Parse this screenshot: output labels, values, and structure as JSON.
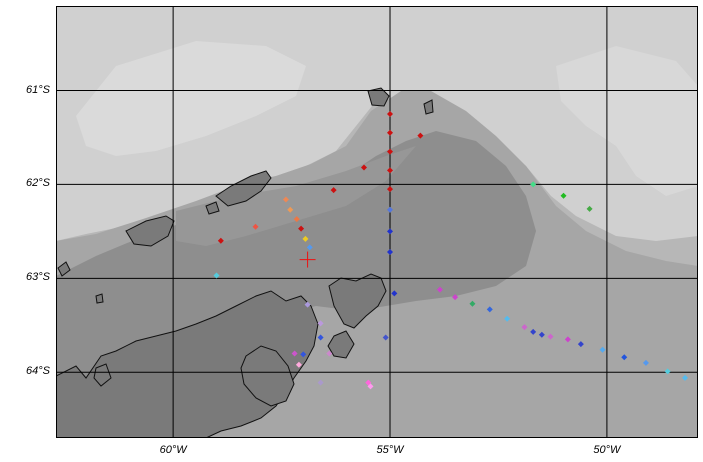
{
  "map": {
    "lat_labels": [
      {
        "text": "61°S",
        "lat": -61
      },
      {
        "text": "62°S",
        "lat": -62
      },
      {
        "text": "63°S",
        "lat": -63
      },
      {
        "text": "64°S",
        "lat": -64
      }
    ],
    "lon_labels": [
      {
        "text": "60°W",
        "lon": -60
      },
      {
        "text": "55°W",
        "lon": -55
      },
      {
        "text": "50°W",
        "lon": -50
      }
    ],
    "grid_lons": [
      -60,
      -55,
      -50
    ],
    "grid_lats": [
      -61,
      -62,
      -63,
      -64
    ],
    "extent": {
      "lon_min": -62.7,
      "lon_max": -47.9,
      "lat_min": -64.7,
      "lat_max": -60.1
    },
    "gridlines": true,
    "marker": {
      "type": "red-cross",
      "lon": -56.9,
      "lat": -62.8
    },
    "colors": {
      "land": "#7a7a7a",
      "deep": "#888888",
      "mid": "#a2a2a2",
      "shelf": "#bdbdbd",
      "shallow": "#d6d6d6",
      "grid": "#000000",
      "marker": "#ee1111"
    },
    "stations": [
      {
        "lon": -55.0,
        "lat": -61.25,
        "color": "#cc1111"
      },
      {
        "lon": -55.0,
        "lat": -61.45,
        "color": "#cc1111"
      },
      {
        "lon": -55.0,
        "lat": -61.65,
        "color": "#cc1111"
      },
      {
        "lon": -55.0,
        "lat": -61.85,
        "color": "#cc1111"
      },
      {
        "lon": -55.0,
        "lat": -62.05,
        "color": "#cc1111"
      },
      {
        "lon": -55.0,
        "lat": -62.27,
        "color": "#5577dd"
      },
      {
        "lon": -55.0,
        "lat": -62.5,
        "color": "#2233cc"
      },
      {
        "lon": -55.0,
        "lat": -62.72,
        "color": "#2233cc"
      },
      {
        "lon": -54.3,
        "lat": -61.48,
        "color": "#cc1111"
      },
      {
        "lon": -55.6,
        "lat": -61.82,
        "color": "#cc1111"
      },
      {
        "lon": -56.3,
        "lat": -62.06,
        "color": "#cc1111"
      },
      {
        "lon": -58.1,
        "lat": -62.45,
        "color": "#ee5544"
      },
      {
        "lon": -58.9,
        "lat": -62.6,
        "color": "#cc1111"
      },
      {
        "lon": -57.4,
        "lat": -62.16,
        "color": "#ee8855"
      },
      {
        "lon": -57.3,
        "lat": -62.27,
        "color": "#ee9955"
      },
      {
        "lon": -57.15,
        "lat": -62.37,
        "color": "#ee7744"
      },
      {
        "lon": -57.05,
        "lat": -62.47,
        "color": "#cc1111"
      },
      {
        "lon": -56.95,
        "lat": -62.58,
        "color": "#eecc22"
      },
      {
        "lon": -56.85,
        "lat": -62.67,
        "color": "#5599ee"
      },
      {
        "lon": -59.0,
        "lat": -62.97,
        "color": "#55ccdd"
      },
      {
        "lon": -54.9,
        "lat": -63.16,
        "color": "#2233cc"
      },
      {
        "lon": -53.85,
        "lat": -63.12,
        "color": "#cc44cc"
      },
      {
        "lon": -53.5,
        "lat": -63.2,
        "color": "#cc44cc"
      },
      {
        "lon": -53.1,
        "lat": -63.27,
        "color": "#33aa66"
      },
      {
        "lon": -52.7,
        "lat": -63.33,
        "color": "#3366dd"
      },
      {
        "lon": -52.3,
        "lat": -63.43,
        "color": "#55bbee"
      },
      {
        "lon": -51.9,
        "lat": -63.52,
        "color": "#cc66cc"
      },
      {
        "lon": -51.7,
        "lat": -63.57,
        "color": "#3344cc"
      },
      {
        "lon": -51.5,
        "lat": -63.6,
        "color": "#3344cc"
      },
      {
        "lon": -51.3,
        "lat": -63.62,
        "color": "#cc66cc"
      },
      {
        "lon": -50.9,
        "lat": -63.65,
        "color": "#cc44cc"
      },
      {
        "lon": -50.6,
        "lat": -63.7,
        "color": "#3344cc"
      },
      {
        "lon": -50.1,
        "lat": -63.76,
        "color": "#55aaee"
      },
      {
        "lon": -49.6,
        "lat": -63.84,
        "color": "#2255dd"
      },
      {
        "lon": -49.1,
        "lat": -63.9,
        "color": "#5599ee"
      },
      {
        "lon": -48.6,
        "lat": -63.99,
        "color": "#55ccdd"
      },
      {
        "lon": -48.2,
        "lat": -64.06,
        "color": "#55bbee"
      },
      {
        "lon": -51.0,
        "lat": -62.12,
        "color": "#22bb22"
      },
      {
        "lon": -50.4,
        "lat": -62.26,
        "color": "#44aa44"
      },
      {
        "lon": -51.7,
        "lat": -62.0,
        "color": "#44dd88"
      },
      {
        "lon": -55.1,
        "lat": -63.63,
        "color": "#4455cc"
      },
      {
        "lon": -56.6,
        "lat": -63.63,
        "color": "#3355dd"
      },
      {
        "lon": -57.0,
        "lat": -63.81,
        "color": "#3355dd"
      },
      {
        "lon": -57.2,
        "lat": -63.8,
        "color": "#cc55cc"
      },
      {
        "lon": -56.4,
        "lat": -63.8,
        "color": "#cc88cc"
      },
      {
        "lon": -56.6,
        "lat": -63.48,
        "color": "#bb99dd"
      },
      {
        "lon": -56.9,
        "lat": -63.28,
        "color": "#aa99dd"
      },
      {
        "lon": -57.1,
        "lat": -63.92,
        "color": "#ffaadd"
      },
      {
        "lon": -56.6,
        "lat": -64.11,
        "color": "#aa99cc"
      },
      {
        "lon": -55.5,
        "lat": -64.11,
        "color": "#ff66dd"
      },
      {
        "lon": -55.45,
        "lat": -64.15,
        "color": "#ff99ee"
      }
    ]
  }
}
